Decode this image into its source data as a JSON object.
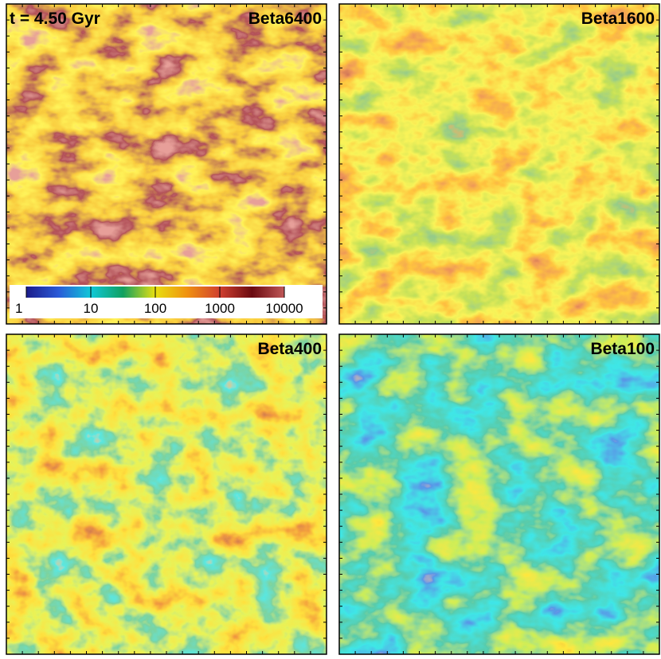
{
  "chart_data": {
    "type": "heatmap",
    "annotation": "t = 4.50 Gyr",
    "panels": [
      "Beta6400",
      "Beta1600",
      "Beta400",
      "Beta100"
    ],
    "colorbar": {
      "lim": [
        1,
        10000
      ],
      "ticks": [
        1,
        10,
        100,
        1000,
        10000
      ],
      "log": true,
      "colors": [
        "#1c1c8a",
        "#2a5ad8",
        "#10c8d8",
        "#10a060",
        "#e8e010",
        "#f09010",
        "#d04030",
        "#6a0a10",
        "#c05858"
      ]
    }
  }
}
